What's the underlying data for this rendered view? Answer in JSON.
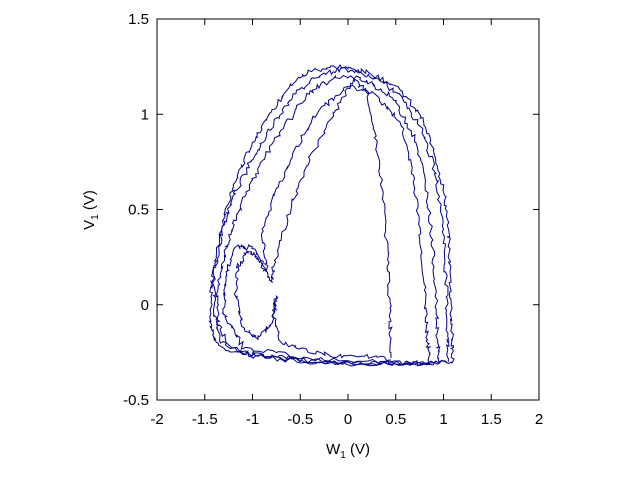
{
  "chart_data": {
    "type": "line",
    "title": "",
    "xlabel": "W",
    "xlabel_subscript": "1",
    "xlabel_unit": " (V)",
    "ylabel": "V",
    "ylabel_subscript": "1",
    "ylabel_unit": " (V)",
    "xlim": [
      -2,
      2
    ],
    "ylim": [
      -0.5,
      1.5
    ],
    "xticks": [
      "-2",
      "-1.5",
      "-1",
      "-0.5",
      "0",
      "0.5",
      "1",
      "1.5",
      "2"
    ],
    "yticks": [
      "-0.5",
      "0",
      "0.5",
      "1",
      "1.5"
    ],
    "grid": false,
    "legend": "none",
    "line_color": "#00008b",
    "series": [
      {
        "values": [
          [
            1.1,
            -0.3
          ],
          [
            0.6,
            -0.31
          ],
          [
            0.0,
            -0.31
          ],
          [
            -0.5,
            -0.29
          ],
          [
            -1.0,
            -0.26
          ],
          [
            -1.35,
            -0.22
          ],
          [
            -1.45,
            -0.1
          ],
          [
            -1.43,
            0.1
          ],
          [
            -1.38,
            0.25
          ],
          [
            -1.3,
            0.45
          ],
          [
            -1.2,
            0.62
          ],
          [
            -1.05,
            0.8
          ],
          [
            -0.85,
            0.98
          ],
          [
            -0.6,
            1.15
          ],
          [
            -0.4,
            1.23
          ],
          [
            -0.1,
            1.25
          ],
          [
            0.2,
            1.22
          ],
          [
            0.5,
            1.15
          ],
          [
            0.75,
            1.0
          ],
          [
            0.92,
            0.78
          ],
          [
            1.02,
            0.55
          ],
          [
            1.06,
            0.3
          ],
          [
            1.08,
            0.0
          ],
          [
            1.09,
            -0.2
          ],
          [
            1.1,
            -0.3
          ]
        ]
      },
      {
        "values": [
          [
            1.05,
            -0.3
          ],
          [
            0.5,
            -0.31
          ],
          [
            -0.2,
            -0.3
          ],
          [
            -0.8,
            -0.28
          ],
          [
            -1.25,
            -0.23
          ],
          [
            -1.4,
            -0.05
          ],
          [
            -1.4,
            0.18
          ],
          [
            -1.32,
            0.38
          ],
          [
            -1.22,
            0.55
          ],
          [
            -1.05,
            0.72
          ],
          [
            -0.85,
            0.9
          ],
          [
            -0.6,
            1.08
          ],
          [
            -0.35,
            1.2
          ],
          [
            -0.05,
            1.24
          ],
          [
            0.25,
            1.2
          ],
          [
            0.55,
            1.1
          ],
          [
            0.78,
            0.92
          ],
          [
            0.92,
            0.68
          ],
          [
            1.0,
            0.4
          ],
          [
            1.03,
            0.1
          ],
          [
            1.04,
            -0.15
          ],
          [
            1.05,
            -0.3
          ]
        ]
      },
      {
        "values": [
          [
            0.95,
            -0.3
          ],
          [
            0.3,
            -0.31
          ],
          [
            -0.4,
            -0.3
          ],
          [
            -1.0,
            -0.27
          ],
          [
            -1.35,
            -0.18
          ],
          [
            -1.38,
            0.05
          ],
          [
            -1.3,
            0.25
          ],
          [
            -1.2,
            0.42
          ],
          [
            -1.08,
            0.58
          ],
          [
            -0.9,
            0.75
          ],
          [
            -0.65,
            0.95
          ],
          [
            -0.4,
            1.12
          ],
          [
            -0.1,
            1.2
          ],
          [
            0.2,
            1.18
          ],
          [
            0.48,
            1.08
          ],
          [
            0.7,
            0.88
          ],
          [
            0.82,
            0.62
          ],
          [
            0.88,
            0.35
          ],
          [
            0.92,
            0.05
          ],
          [
            0.94,
            -0.2
          ],
          [
            0.95,
            -0.3
          ]
        ]
      },
      {
        "values": [
          [
            0.85,
            -0.31
          ],
          [
            0.2,
            -0.3
          ],
          [
            -0.5,
            -0.28
          ],
          [
            -1.1,
            -0.22
          ],
          [
            -1.3,
            -0.05
          ],
          [
            -1.28,
            0.15
          ],
          [
            -1.18,
            0.3
          ],
          [
            -1.0,
            0.3
          ],
          [
            -0.85,
            0.18
          ],
          [
            -0.9,
            0.38
          ],
          [
            -0.75,
            0.6
          ],
          [
            -0.55,
            0.82
          ],
          [
            -0.3,
            1.02
          ],
          [
            0.0,
            1.15
          ],
          [
            0.3,
            1.1
          ],
          [
            0.55,
            0.95
          ],
          [
            0.68,
            0.7
          ],
          [
            0.75,
            0.4
          ],
          [
            0.8,
            0.1
          ],
          [
            0.83,
            -0.15
          ],
          [
            0.85,
            -0.31
          ]
        ]
      },
      {
        "values": [
          [
            0.45,
            -0.28
          ],
          [
            0.0,
            -0.27
          ],
          [
            -0.4,
            -0.25
          ],
          [
            -0.7,
            -0.2
          ],
          [
            -0.78,
            -0.05
          ],
          [
            -0.75,
            0.05
          ],
          [
            -0.8,
            -0.1
          ],
          [
            -0.95,
            -0.18
          ],
          [
            -1.1,
            -0.12
          ],
          [
            -1.18,
            0.05
          ],
          [
            -1.15,
            0.2
          ],
          [
            -1.05,
            0.28
          ],
          [
            -0.95,
            0.25
          ],
          [
            -0.8,
            0.12
          ],
          [
            -0.78,
            0.2
          ],
          [
            -0.6,
            0.5
          ],
          [
            -0.4,
            0.78
          ],
          [
            -0.15,
            1.0
          ],
          [
            0.05,
            1.18
          ],
          [
            0.2,
            1.12
          ],
          [
            0.3,
            0.85
          ],
          [
            0.38,
            0.5
          ],
          [
            0.42,
            0.2
          ],
          [
            0.44,
            -0.05
          ],
          [
            0.45,
            -0.28
          ]
        ]
      }
    ]
  }
}
